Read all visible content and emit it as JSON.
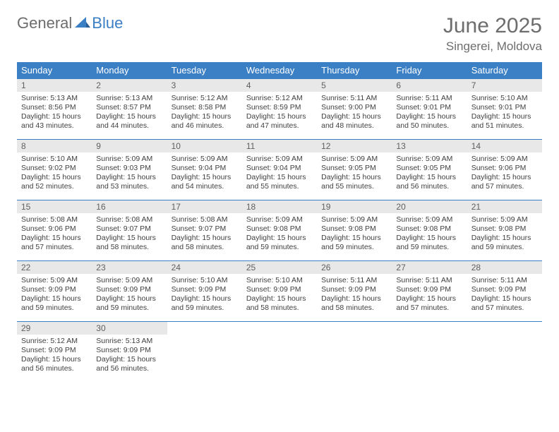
{
  "logo": {
    "general": "General",
    "blue": "Blue"
  },
  "header": {
    "month_title": "June 2025",
    "location": "Singerei, Moldova"
  },
  "colors": {
    "header_bg": "#3b7fc4",
    "header_text": "#ffffff",
    "daynum_bg": "#e8e8e8",
    "daynum_text": "#5f5f5f",
    "body_text": "#404040",
    "title_text": "#6d6d6d",
    "border": "#3b7fc4",
    "page_bg": "#ffffff"
  },
  "weekdays": [
    "Sunday",
    "Monday",
    "Tuesday",
    "Wednesday",
    "Thursday",
    "Friday",
    "Saturday"
  ],
  "days": [
    {
      "n": "1",
      "sunrise": "5:13 AM",
      "sunset": "8:56 PM",
      "dl_h": "15",
      "dl_m": "43"
    },
    {
      "n": "2",
      "sunrise": "5:13 AM",
      "sunset": "8:57 PM",
      "dl_h": "15",
      "dl_m": "44"
    },
    {
      "n": "3",
      "sunrise": "5:12 AM",
      "sunset": "8:58 PM",
      "dl_h": "15",
      "dl_m": "46"
    },
    {
      "n": "4",
      "sunrise": "5:12 AM",
      "sunset": "8:59 PM",
      "dl_h": "15",
      "dl_m": "47"
    },
    {
      "n": "5",
      "sunrise": "5:11 AM",
      "sunset": "9:00 PM",
      "dl_h": "15",
      "dl_m": "48"
    },
    {
      "n": "6",
      "sunrise": "5:11 AM",
      "sunset": "9:01 PM",
      "dl_h": "15",
      "dl_m": "50"
    },
    {
      "n": "7",
      "sunrise": "5:10 AM",
      "sunset": "9:01 PM",
      "dl_h": "15",
      "dl_m": "51"
    },
    {
      "n": "8",
      "sunrise": "5:10 AM",
      "sunset": "9:02 PM",
      "dl_h": "15",
      "dl_m": "52"
    },
    {
      "n": "9",
      "sunrise": "5:09 AM",
      "sunset": "9:03 PM",
      "dl_h": "15",
      "dl_m": "53"
    },
    {
      "n": "10",
      "sunrise": "5:09 AM",
      "sunset": "9:04 PM",
      "dl_h": "15",
      "dl_m": "54"
    },
    {
      "n": "11",
      "sunrise": "5:09 AM",
      "sunset": "9:04 PM",
      "dl_h": "15",
      "dl_m": "55"
    },
    {
      "n": "12",
      "sunrise": "5:09 AM",
      "sunset": "9:05 PM",
      "dl_h": "15",
      "dl_m": "55"
    },
    {
      "n": "13",
      "sunrise": "5:09 AM",
      "sunset": "9:05 PM",
      "dl_h": "15",
      "dl_m": "56"
    },
    {
      "n": "14",
      "sunrise": "5:09 AM",
      "sunset": "9:06 PM",
      "dl_h": "15",
      "dl_m": "57"
    },
    {
      "n": "15",
      "sunrise": "5:08 AM",
      "sunset": "9:06 PM",
      "dl_h": "15",
      "dl_m": "57"
    },
    {
      "n": "16",
      "sunrise": "5:08 AM",
      "sunset": "9:07 PM",
      "dl_h": "15",
      "dl_m": "58"
    },
    {
      "n": "17",
      "sunrise": "5:08 AM",
      "sunset": "9:07 PM",
      "dl_h": "15",
      "dl_m": "58"
    },
    {
      "n": "18",
      "sunrise": "5:09 AM",
      "sunset": "9:08 PM",
      "dl_h": "15",
      "dl_m": "59"
    },
    {
      "n": "19",
      "sunrise": "5:09 AM",
      "sunset": "9:08 PM",
      "dl_h": "15",
      "dl_m": "59"
    },
    {
      "n": "20",
      "sunrise": "5:09 AM",
      "sunset": "9:08 PM",
      "dl_h": "15",
      "dl_m": "59"
    },
    {
      "n": "21",
      "sunrise": "5:09 AM",
      "sunset": "9:08 PM",
      "dl_h": "15",
      "dl_m": "59"
    },
    {
      "n": "22",
      "sunrise": "5:09 AM",
      "sunset": "9:09 PM",
      "dl_h": "15",
      "dl_m": "59"
    },
    {
      "n": "23",
      "sunrise": "5:09 AM",
      "sunset": "9:09 PM",
      "dl_h": "15",
      "dl_m": "59"
    },
    {
      "n": "24",
      "sunrise": "5:10 AM",
      "sunset": "9:09 PM",
      "dl_h": "15",
      "dl_m": "59"
    },
    {
      "n": "25",
      "sunrise": "5:10 AM",
      "sunset": "9:09 PM",
      "dl_h": "15",
      "dl_m": "58"
    },
    {
      "n": "26",
      "sunrise": "5:11 AM",
      "sunset": "9:09 PM",
      "dl_h": "15",
      "dl_m": "58"
    },
    {
      "n": "27",
      "sunrise": "5:11 AM",
      "sunset": "9:09 PM",
      "dl_h": "15",
      "dl_m": "57"
    },
    {
      "n": "28",
      "sunrise": "5:11 AM",
      "sunset": "9:09 PM",
      "dl_h": "15",
      "dl_m": "57"
    },
    {
      "n": "29",
      "sunrise": "5:12 AM",
      "sunset": "9:09 PM",
      "dl_h": "15",
      "dl_m": "56"
    },
    {
      "n": "30",
      "sunrise": "5:13 AM",
      "sunset": "9:09 PM",
      "dl_h": "15",
      "dl_m": "56"
    }
  ],
  "labels": {
    "sunrise": "Sunrise:",
    "sunset": "Sunset:",
    "daylight": "Daylight:",
    "hours": "hours",
    "and": "and",
    "minutes": "minutes."
  }
}
